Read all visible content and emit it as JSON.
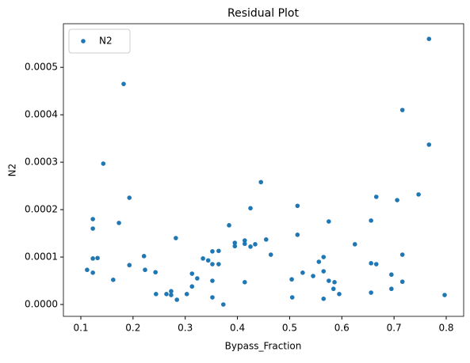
{
  "chart_data": {
    "type": "scatter",
    "title": "Residual Plot",
    "x_label": "Bypass_Fraction",
    "y_label": "N2",
    "legend": "upper left",
    "series": [
      {
        "name": "N2",
        "color": "#1f77b4",
        "x": [
          0.112,
          0.123,
          0.123,
          0.123,
          0.123,
          0.132,
          0.143,
          0.162,
          0.173,
          0.182,
          0.193,
          0.193,
          0.221,
          0.223,
          0.243,
          0.244,
          0.264,
          0.273,
          0.273,
          0.282,
          0.284,
          0.303,
          0.313,
          0.313,
          0.323,
          0.334,
          0.344,
          0.352,
          0.352,
          0.352,
          0.352,
          0.364,
          0.364,
          0.373,
          0.384,
          0.395,
          0.395,
          0.414,
          0.414,
          0.414,
          0.425,
          0.425,
          0.434,
          0.445,
          0.455,
          0.464,
          0.504,
          0.505,
          0.515,
          0.515,
          0.525,
          0.545,
          0.556,
          0.565,
          0.565,
          0.565,
          0.575,
          0.575,
          0.584,
          0.586,
          0.595,
          0.625,
          0.656,
          0.656,
          0.656,
          0.666,
          0.666,
          0.695,
          0.695,
          0.706,
          0.716,
          0.716,
          0.716,
          0.747,
          0.767,
          0.767,
          0.797
        ],
        "values": [
          7.3e-05,
          6.7e-05,
          9.7e-05,
          0.00018,
          0.00016,
          9.8e-05,
          0.000297,
          5.2e-05,
          0.000172,
          0.000465,
          8.3e-05,
          0.000225,
          0.000102,
          7.3e-05,
          6.8e-05,
          2.2e-05,
          2.2e-05,
          2.8e-05,
          2e-05,
          0.00014,
          1e-05,
          2.2e-05,
          6.5e-05,
          3.8e-05,
          5.5e-05,
          9.7e-05,
          9.3e-05,
          0.000112,
          8.5e-05,
          5e-05,
          1.5e-05,
          8.5e-05,
          0.000113,
          0.0,
          0.000167,
          0.00013,
          0.000123,
          0.000135,
          0.000128,
          4.7e-05,
          0.000122,
          0.000203,
          0.000127,
          0.000258,
          0.000137,
          0.000105,
          5.3e-05,
          1.5e-05,
          0.000208,
          0.000147,
          6.7e-05,
          6e-05,
          9e-05,
          0.0001,
          7e-05,
          1.2e-05,
          5e-05,
          0.000175,
          3.3e-05,
          4.7e-05,
          2.2e-05,
          0.000127,
          0.000177,
          8.7e-05,
          2.5e-05,
          0.000227,
          8.5e-05,
          6.3e-05,
          3.3e-05,
          0.00022,
          0.00041,
          0.000105,
          4.8e-05,
          0.000232,
          0.00056,
          0.000337,
          2e-05
        ]
      }
    ],
    "xlim": [
      0.0666,
      0.8334
    ],
    "ylim": [
      -2.5e-05,
      0.000592
    ],
    "xticks": [
      0.1,
      0.2,
      0.3,
      0.4,
      0.5,
      0.6,
      0.7,
      0.8
    ],
    "yticks": [
      {
        "value": 0,
        "label": "0.0000"
      },
      {
        "value": 0.0001,
        "label": "0.0001"
      },
      {
        "value": 0.0002,
        "label": "0.0002"
      },
      {
        "value": 0.0003,
        "label": "0.0003"
      },
      {
        "value": 0.0004,
        "label": "0.0004"
      },
      {
        "value": 0.0005,
        "label": "0.0005"
      }
    ]
  }
}
